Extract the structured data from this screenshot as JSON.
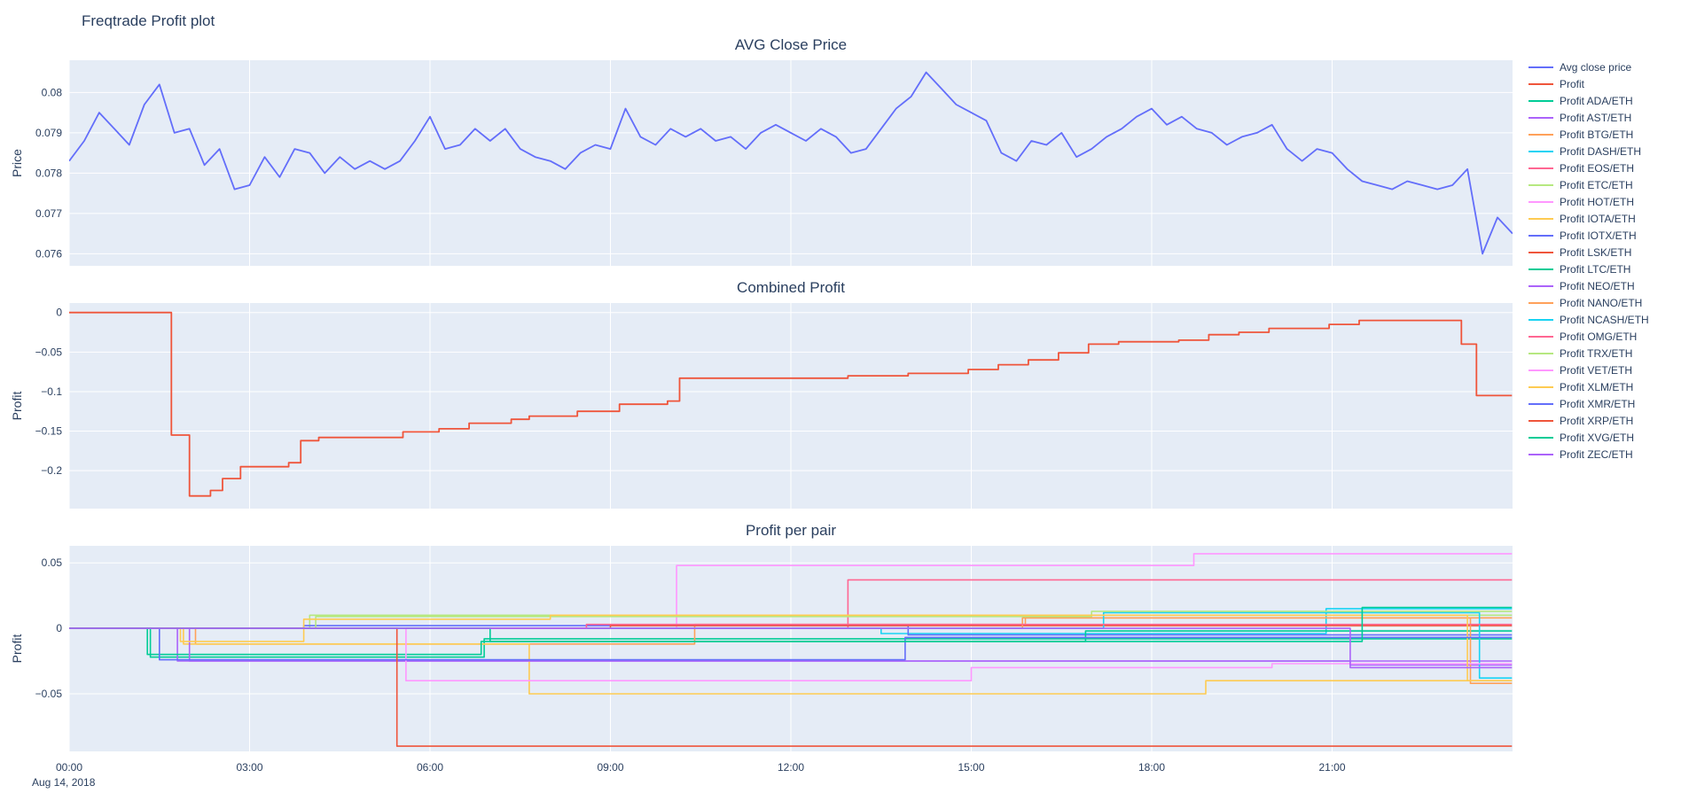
{
  "title": "Freqtrade Profit plot",
  "colors": {
    "plot_bg": "#E5ECF6",
    "grid": "#ffffff",
    "text": "#2a3f5f"
  },
  "xaxis": {
    "range": [
      0,
      24
    ],
    "tick_vals": [
      0,
      3,
      6,
      9,
      12,
      15,
      18,
      21
    ],
    "tick_labels": [
      "00:00",
      "03:00",
      "06:00",
      "09:00",
      "12:00",
      "15:00",
      "18:00",
      "21:00"
    ],
    "date_label": "Aug 14, 2018"
  },
  "legend": [
    {
      "label": "Avg close price",
      "color": "#636EFA"
    },
    {
      "label": "Profit",
      "color": "#EF553B"
    },
    {
      "label": "Profit ADA/ETH",
      "color": "#00CC96"
    },
    {
      "label": "Profit AST/ETH",
      "color": "#AB63FA"
    },
    {
      "label": "Profit BTG/ETH",
      "color": "#FFA15A"
    },
    {
      "label": "Profit DASH/ETH",
      "color": "#19D3F3"
    },
    {
      "label": "Profit EOS/ETH",
      "color": "#FF6692"
    },
    {
      "label": "Profit ETC/ETH",
      "color": "#B6E880"
    },
    {
      "label": "Profit HOT/ETH",
      "color": "#FF97FF"
    },
    {
      "label": "Profit IOTA/ETH",
      "color": "#FECB52"
    },
    {
      "label": "Profit IOTX/ETH",
      "color": "#636EFA"
    },
    {
      "label": "Profit LSK/ETH",
      "color": "#EF553B"
    },
    {
      "label": "Profit LTC/ETH",
      "color": "#00CC96"
    },
    {
      "label": "Profit NEO/ETH",
      "color": "#AB63FA"
    },
    {
      "label": "Profit NANO/ETH",
      "color": "#FFA15A"
    },
    {
      "label": "Profit NCASH/ETH",
      "color": "#19D3F3"
    },
    {
      "label": "Profit OMG/ETH",
      "color": "#FF6692"
    },
    {
      "label": "Profit TRX/ETH",
      "color": "#B6E880"
    },
    {
      "label": "Profit VET/ETH",
      "color": "#FF97FF"
    },
    {
      "label": "Profit XLM/ETH",
      "color": "#FECB52"
    },
    {
      "label": "Profit XMR/ETH",
      "color": "#636EFA"
    },
    {
      "label": "Profit XRP/ETH",
      "color": "#EF553B"
    },
    {
      "label": "Profit XVG/ETH",
      "color": "#00CC96"
    },
    {
      "label": "Profit ZEC/ETH",
      "color": "#AB63FA"
    }
  ],
  "chart_data": [
    {
      "type": "line",
      "title": "AVG Close Price",
      "ylabel": "Price",
      "ylim": [
        0.0757,
        0.0808
      ],
      "ytick_vals": [
        0.076,
        0.077,
        0.078,
        0.079,
        0.08
      ],
      "ytick_labels": [
        "0.076",
        "0.077",
        "0.078",
        "0.079",
        "0.08"
      ],
      "line_width": 1.8,
      "series": [
        {
          "name": "Avg close price",
          "color": "#636EFA",
          "mode": "linear",
          "x0": 0,
          "dx": 0.25,
          "y": [
            0.0783,
            0.0788,
            0.0795,
            0.0791,
            0.0787,
            0.0797,
            0.0802,
            0.079,
            0.0791,
            0.0782,
            0.0786,
            0.0776,
            0.0777,
            0.0784,
            0.0779,
            0.0786,
            0.0785,
            0.078,
            0.0784,
            0.0781,
            0.0783,
            0.0781,
            0.0783,
            0.0788,
            0.0794,
            0.0786,
            0.0787,
            0.0791,
            0.0788,
            0.0791,
            0.0786,
            0.0784,
            0.0783,
            0.0781,
            0.0785,
            0.0787,
            0.0786,
            0.0796,
            0.0789,
            0.0787,
            0.0791,
            0.0789,
            0.0791,
            0.0788,
            0.0789,
            0.0786,
            0.079,
            0.0792,
            0.079,
            0.0788,
            0.0791,
            0.0789,
            0.0785,
            0.0786,
            0.0791,
            0.0796,
            0.0799,
            0.0805,
            0.0801,
            0.0797,
            0.0795,
            0.0793,
            0.0785,
            0.0783,
            0.0788,
            0.0787,
            0.079,
            0.0784,
            0.0786,
            0.0789,
            0.0791,
            0.0794,
            0.0796,
            0.0792,
            0.0794,
            0.0791,
            0.079,
            0.0787,
            0.0789,
            0.079,
            0.0792,
            0.0786,
            0.0783,
            0.0786,
            0.0785,
            0.0781,
            0.0778,
            0.0777,
            0.0776,
            0.0778,
            0.0777,
            0.0776,
            0.0777,
            0.0781,
            0.076,
            0.0769,
            0.0765
          ]
        }
      ]
    },
    {
      "type": "line",
      "title": "Combined Profit",
      "ylabel": "Profit",
      "ylim": [
        -0.248,
        0.012
      ],
      "ytick_vals": [
        0,
        -0.05,
        -0.1,
        -0.15,
        -0.2
      ],
      "ytick_labels": [
        "0",
        "−0.05",
        "−0.1",
        "−0.15",
        "−0.2"
      ],
      "line_width": 1.8,
      "series": [
        {
          "name": "Profit",
          "color": "#EF553B",
          "mode": "step",
          "points": [
            [
              0,
              0
            ],
            [
              1.7,
              -0.155
            ],
            [
              2.0,
              -0.232
            ],
            [
              2.35,
              -0.225
            ],
            [
              2.55,
              -0.21
            ],
            [
              2.85,
              -0.195
            ],
            [
              3.65,
              -0.19
            ],
            [
              3.85,
              -0.162
            ],
            [
              4.15,
              -0.158
            ],
            [
              5.55,
              -0.151
            ],
            [
              6.15,
              -0.147
            ],
            [
              6.65,
              -0.14
            ],
            [
              7.35,
              -0.135
            ],
            [
              7.65,
              -0.131
            ],
            [
              8.45,
              -0.125
            ],
            [
              9.15,
              -0.116
            ],
            [
              9.95,
              -0.112
            ],
            [
              10.15,
              -0.083
            ],
            [
              12.95,
              -0.08
            ],
            [
              13.95,
              -0.077
            ],
            [
              14.95,
              -0.072
            ],
            [
              15.45,
              -0.066
            ],
            [
              15.95,
              -0.06
            ],
            [
              16.45,
              -0.051
            ],
            [
              16.95,
              -0.04
            ],
            [
              17.45,
              -0.037
            ],
            [
              18.45,
              -0.035
            ],
            [
              18.95,
              -0.028
            ],
            [
              19.45,
              -0.025
            ],
            [
              19.95,
              -0.02
            ],
            [
              20.95,
              -0.015
            ],
            [
              21.45,
              -0.01
            ],
            [
              23.15,
              -0.04
            ],
            [
              23.4,
              -0.105
            ],
            [
              23.99,
              -0.105
            ]
          ]
        }
      ]
    },
    {
      "type": "line",
      "title": "Profit per pair",
      "ylabel": "Profit",
      "ylim": [
        -0.094,
        0.063
      ],
      "ytick_vals": [
        0.05,
        0,
        -0.05
      ],
      "ytick_labels": [
        "0.05",
        "0",
        "−0.05"
      ],
      "line_width": 1.6,
      "series": [
        {
          "name": "Profit ADA/ETH",
          "color": "#00CC96",
          "mode": "step",
          "points": [
            [
              0,
              0
            ],
            [
              1.35,
              -0.022
            ],
            [
              6.9,
              -0.008
            ],
            [
              23.99,
              -0.008
            ]
          ]
        },
        {
          "name": "Profit AST/ETH",
          "color": "#AB63FA",
          "mode": "step",
          "points": [
            [
              0,
              0
            ],
            [
              1.8,
              -0.025
            ],
            [
              21.3,
              -0.028
            ],
            [
              23.99,
              -0.028
            ]
          ]
        },
        {
          "name": "Profit BTG/ETH",
          "color": "#FFA15A",
          "mode": "step",
          "points": [
            [
              0,
              0
            ],
            [
              2.1,
              -0.012
            ],
            [
              10.4,
              0.003
            ],
            [
              15.9,
              0.008
            ],
            [
              23.99,
              0.008
            ]
          ]
        },
        {
          "name": "Profit DASH/ETH",
          "color": "#19D3F3",
          "mode": "step",
          "points": [
            [
              0,
              0
            ],
            [
              13.5,
              -0.004
            ],
            [
              20.9,
              0.015
            ],
            [
              23.99,
              0.015
            ]
          ]
        },
        {
          "name": "Profit EOS/ETH",
          "color": "#FF6692",
          "mode": "step",
          "points": [
            [
              0,
              0
            ],
            [
              12.95,
              0.037
            ],
            [
              23.99,
              0.037
            ]
          ]
        },
        {
          "name": "Profit ETC/ETH",
          "color": "#B6E880",
          "mode": "step",
          "points": [
            [
              0,
              0
            ],
            [
              4.0,
              0.01
            ],
            [
              23.99,
              0.01
            ]
          ]
        },
        {
          "name": "Profit HOT/ETH",
          "color": "#FF97FF",
          "mode": "step",
          "points": [
            [
              0,
              0
            ],
            [
              10.1,
              0.048
            ],
            [
              18.7,
              0.057
            ],
            [
              23.99,
              0.057
            ]
          ]
        },
        {
          "name": "Profit IOTA/ETH",
          "color": "#FECB52",
          "mode": "step",
          "points": [
            [
              0,
              0
            ],
            [
              1.9,
              -0.012
            ],
            [
              7.65,
              -0.05
            ],
            [
              18.9,
              -0.04
            ],
            [
              23.99,
              -0.04
            ]
          ]
        },
        {
          "name": "Profit IOTX/ETH",
          "color": "#636EFA",
          "mode": "step",
          "points": [
            [
              0,
              0
            ],
            [
              3.9,
              0.002
            ],
            [
              13.95,
              -0.005
            ],
            [
              23.99,
              -0.005
            ]
          ]
        },
        {
          "name": "Profit LSK/ETH",
          "color": "#EF553B",
          "mode": "step",
          "points": [
            [
              0,
              0
            ],
            [
              9.0,
              0.002
            ],
            [
              23.99,
              0.002
            ]
          ]
        },
        {
          "name": "Profit LTC/ETH",
          "color": "#00CC96",
          "mode": "step",
          "points": [
            [
              0,
              0
            ],
            [
              1.3,
              -0.02
            ],
            [
              6.85,
              -0.01
            ],
            [
              16.9,
              -0.002
            ],
            [
              23.99,
              -0.002
            ]
          ]
        },
        {
          "name": "Profit NEO/ETH",
          "color": "#AB63FA",
          "mode": "step",
          "points": [
            [
              0,
              0
            ],
            [
              2.0,
              -0.025
            ],
            [
              23.99,
              -0.025
            ]
          ]
        },
        {
          "name": "Profit NANO/ETH",
          "color": "#FFA15A",
          "mode": "step",
          "points": [
            [
              0,
              0
            ],
            [
              15.85,
              0.008
            ],
            [
              23.3,
              -0.042
            ],
            [
              23.99,
              -0.042
            ]
          ]
        },
        {
          "name": "Profit NCASH/ETH",
          "color": "#19D3F3",
          "mode": "step",
          "points": [
            [
              0,
              0
            ],
            [
              17.2,
              0.012
            ],
            [
              23.45,
              -0.038
            ],
            [
              23.99,
              -0.038
            ]
          ]
        },
        {
          "name": "Profit OMG/ETH",
          "color": "#FF6692",
          "mode": "step",
          "points": [
            [
              0,
              0
            ],
            [
              8.6,
              0.003
            ],
            [
              23.99,
              0.003
            ]
          ]
        },
        {
          "name": "Profit TRX/ETH",
          "color": "#B6E880",
          "mode": "step",
          "points": [
            [
              0,
              0
            ],
            [
              4.1,
              0.009
            ],
            [
              17.0,
              0.013
            ],
            [
              23.99,
              0.013
            ]
          ]
        },
        {
          "name": "Profit VET/ETH",
          "color": "#FF97FF",
          "mode": "step",
          "points": [
            [
              0,
              0
            ],
            [
              5.6,
              -0.04
            ],
            [
              15.0,
              -0.03
            ],
            [
              20.0,
              -0.027
            ],
            [
              23.99,
              -0.027
            ]
          ]
        },
        {
          "name": "Profit XLM/ETH",
          "color": "#FECB52",
          "mode": "step",
          "points": [
            [
              0,
              0
            ],
            [
              1.85,
              -0.01
            ],
            [
              3.9,
              0.007
            ],
            [
              8.0,
              0.01
            ],
            [
              23.25,
              -0.04
            ],
            [
              23.99,
              -0.04
            ]
          ]
        },
        {
          "name": "Profit XMR/ETH",
          "color": "#636EFA",
          "mode": "step",
          "points": [
            [
              0,
              0
            ],
            [
              1.5,
              -0.024
            ],
            [
              13.9,
              -0.007
            ],
            [
              23.99,
              -0.007
            ]
          ]
        },
        {
          "name": "Profit XRP/ETH",
          "color": "#EF553B",
          "mode": "step",
          "points": [
            [
              0,
              0
            ],
            [
              5.45,
              -0.09
            ],
            [
              23.99,
              -0.09
            ]
          ]
        },
        {
          "name": "Profit XVG/ETH",
          "color": "#00CC96",
          "mode": "step",
          "points": [
            [
              0,
              0
            ],
            [
              7.0,
              -0.01
            ],
            [
              21.5,
              0.016
            ],
            [
              23.99,
              0.016
            ]
          ]
        },
        {
          "name": "Profit ZEC/ETH",
          "color": "#AB63FA",
          "mode": "step",
          "points": [
            [
              0,
              0
            ],
            [
              21.3,
              -0.03
            ],
            [
              23.99,
              -0.03
            ]
          ]
        }
      ]
    }
  ]
}
